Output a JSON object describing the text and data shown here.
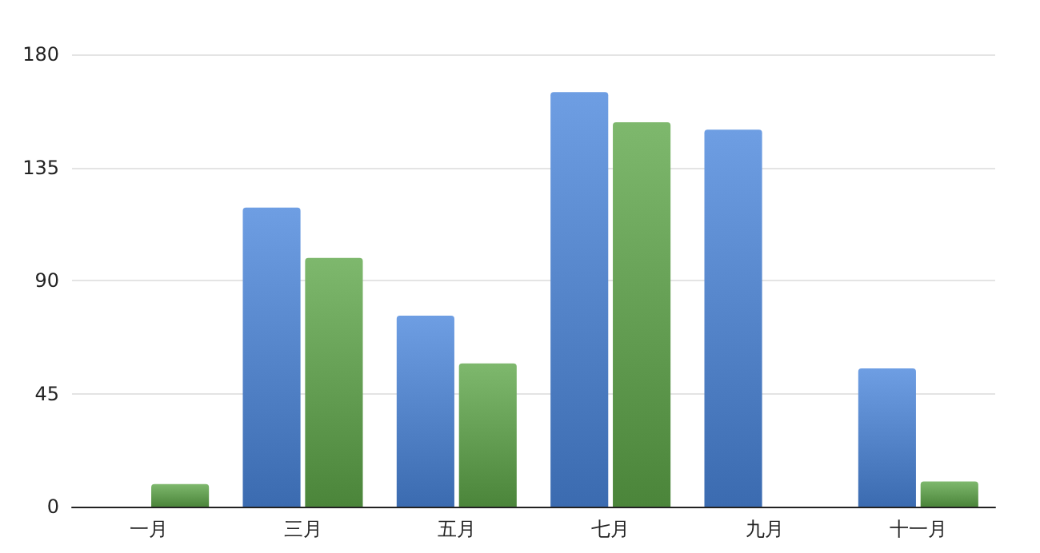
{
  "chart_data": {
    "type": "bar",
    "categories": [
      "一月",
      "三月",
      "五月",
      "七月",
      "九月",
      "十一月"
    ],
    "series": [
      {
        "color": "#4a86dc",
        "values": [
          null,
          119,
          76,
          165,
          150,
          55
        ]
      },
      {
        "color": "#5ea649",
        "values": [
          9,
          99,
          57,
          153,
          null,
          10
        ]
      }
    ],
    "ylim": [
      0,
      180
    ],
    "yticks": [
      0,
      45,
      90,
      135,
      180
    ],
    "grid": "y"
  }
}
